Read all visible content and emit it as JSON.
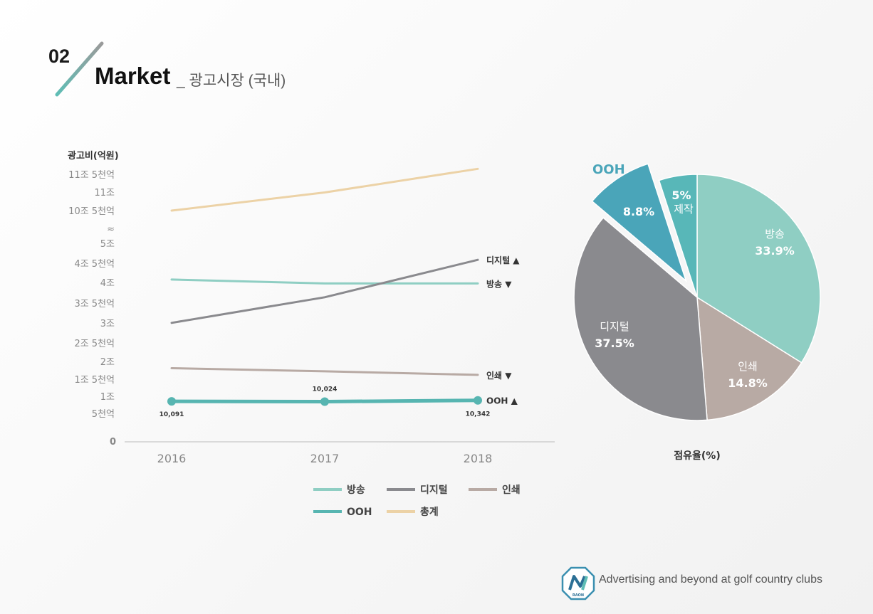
{
  "header": {
    "number": "02",
    "title": "Market",
    "subtitle": "_ 광고시장 (국내)"
  },
  "colors": {
    "broadcast": "#8fcec3",
    "digital": "#8a8a8e",
    "print": "#b8aaa4",
    "ooh": "#57b5b1",
    "total": "#ecd2a6",
    "ooh_slice": "#4aa5b9",
    "production_slice": "#58b7b8"
  },
  "chart_data": [
    {
      "type": "line",
      "ylabel": "광고비(억원)",
      "y_tick_labels": [
        "11조 5천억",
        "11조",
        "10조 5천억",
        "≈",
        "5조",
        "4조 5천억",
        "4조",
        "3조 5천억",
        "3조",
        "2조 5천억",
        "2조",
        "1조 5천억",
        "1조",
        "5천억",
        "0"
      ],
      "axis_break": {
        "lower_max": 50000,
        "upper_min": 105000,
        "upper_max": 115000
      },
      "x": [
        "2016",
        "2017",
        "2018"
      ],
      "series": [
        {
          "name": "방송",
          "key": "broadcast",
          "values": [
            41000,
            40000,
            40000
          ],
          "end_label": "방송",
          "trend": "▼"
        },
        {
          "name": "디지털",
          "key": "digital",
          "values": [
            30000,
            36500,
            46000
          ],
          "end_label": "디지털",
          "trend": "▲"
        },
        {
          "name": "인쇄",
          "key": "print",
          "values": [
            18500,
            17700,
            16800
          ],
          "end_label": "인쇄",
          "trend": "▼"
        },
        {
          "name": "OOH",
          "key": "ooh",
          "values": [
            10091,
            10024,
            10342
          ],
          "end_label": "OOH",
          "trend": "▲",
          "data_labels": [
            "10,091",
            "10,024",
            "10,342"
          ]
        },
        {
          "name": "총계",
          "key": "total",
          "values": [
            105000,
            110000,
            116500
          ]
        }
      ],
      "legend": {
        "position": "bottom"
      }
    },
    {
      "type": "pie",
      "title": "점유율(%)",
      "slices": [
        {
          "label": "방송",
          "value": 33.9,
          "display": "33.9%",
          "key": "broadcast"
        },
        {
          "label": "인쇄",
          "value": 14.8,
          "display": "14.8%",
          "key": "print"
        },
        {
          "label": "디지털",
          "value": 37.5,
          "display": "37.5%",
          "key": "digital"
        },
        {
          "label": "OOH",
          "value": 8.8,
          "display": "8.8%",
          "key": "ooh_slice",
          "exploded": true
        },
        {
          "label": "제작",
          "value": 5,
          "display": "5%",
          "key": "production_slice"
        }
      ]
    }
  ],
  "footer": {
    "tagline": "Advertising and beyond at golf country clubs",
    "logo_text": "RAON"
  }
}
